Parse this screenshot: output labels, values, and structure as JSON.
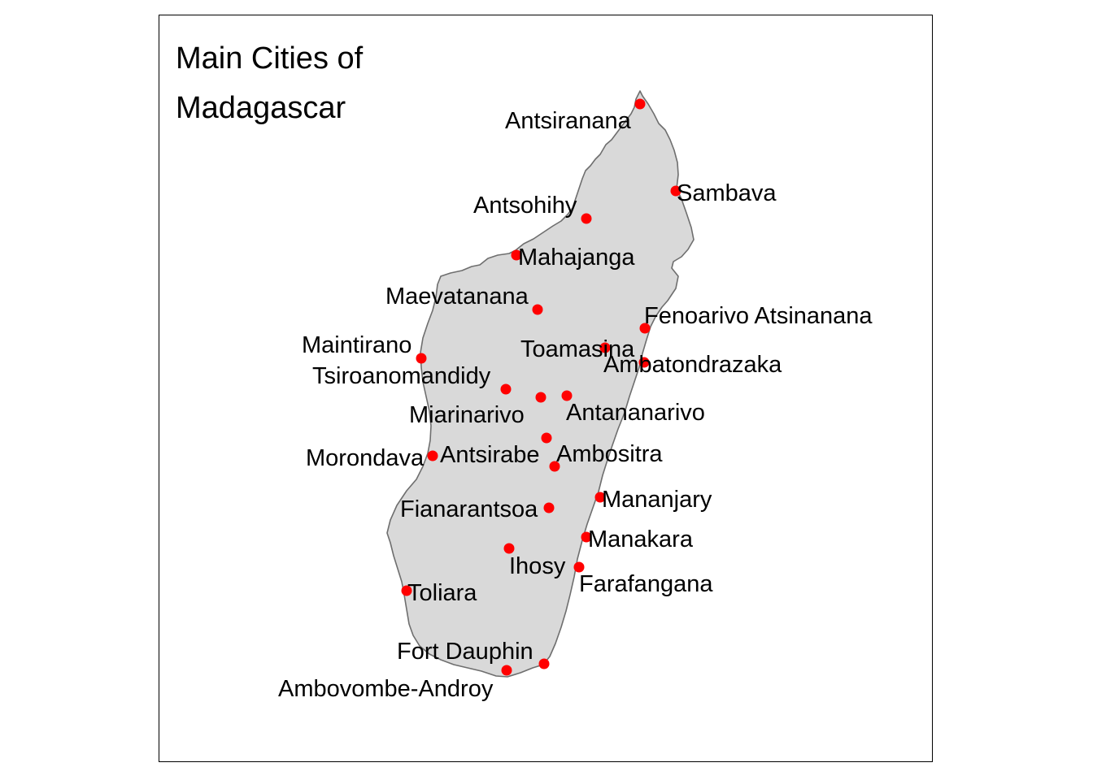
{
  "map": {
    "title_lines": [
      "Main Cities of",
      "Madagascar"
    ],
    "island_name": "Madagascar",
    "land_color": "#d9d9d9",
    "coast_color": "#6e6e6e",
    "point_color": "#ff0000",
    "frame_color": "#000000"
  },
  "cities": [
    {
      "name": "Antsiranana"
    },
    {
      "name": "Sambava"
    },
    {
      "name": "Antsohihy"
    },
    {
      "name": "Mahajanga"
    },
    {
      "name": "Maevatanana"
    },
    {
      "name": "Fenoarivo Atsinanana"
    },
    {
      "name": "Toamasina"
    },
    {
      "name": "Maintirano"
    },
    {
      "name": "Ambatondrazaka"
    },
    {
      "name": "Tsiroanomandidy"
    },
    {
      "name": "Miarinarivo"
    },
    {
      "name": "Antananarivo"
    },
    {
      "name": "Antsirabe"
    },
    {
      "name": "Morondava"
    },
    {
      "name": "Ambositra"
    },
    {
      "name": "Mananjary"
    },
    {
      "name": "Fianarantsoa"
    },
    {
      "name": "Manakara"
    },
    {
      "name": "Ihosy"
    },
    {
      "name": "Farafangana"
    },
    {
      "name": "Toliara"
    },
    {
      "name": "Fort Dauphin"
    },
    {
      "name": "Ambovombe-Androy"
    }
  ]
}
